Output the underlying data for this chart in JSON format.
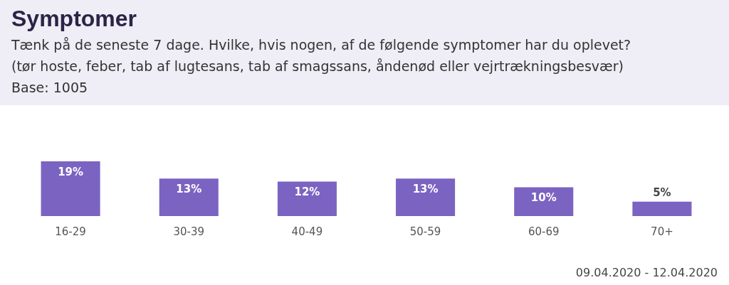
{
  "chart_data": {
    "type": "bar",
    "title": "Symptomer",
    "subtitle": "Tænk på de seneste 7 dage. Hvilke, hvis nogen, af de følgende symptomer har du oplevet? (tør hoste, feber, tab af lugtesans, tab af smagssans, åndenød eller vejrtrækningsbesvær) Base: 1005",
    "categories": [
      "16-29",
      "30-39",
      "40-49",
      "50-59",
      "60-69",
      "70+"
    ],
    "series": [
      {
        "color": "#7b63c2",
        "values": [
          19,
          13,
          12,
          13,
          10,
          5
        ],
        "value_labels": [
          "19%",
          "13%",
          "12%",
          "13%",
          "10%",
          "5%"
        ]
      }
    ],
    "annotations": [
      "09.04.2020 - 12.04.2020"
    ],
    "grid": false,
    "legend": false
  }
}
